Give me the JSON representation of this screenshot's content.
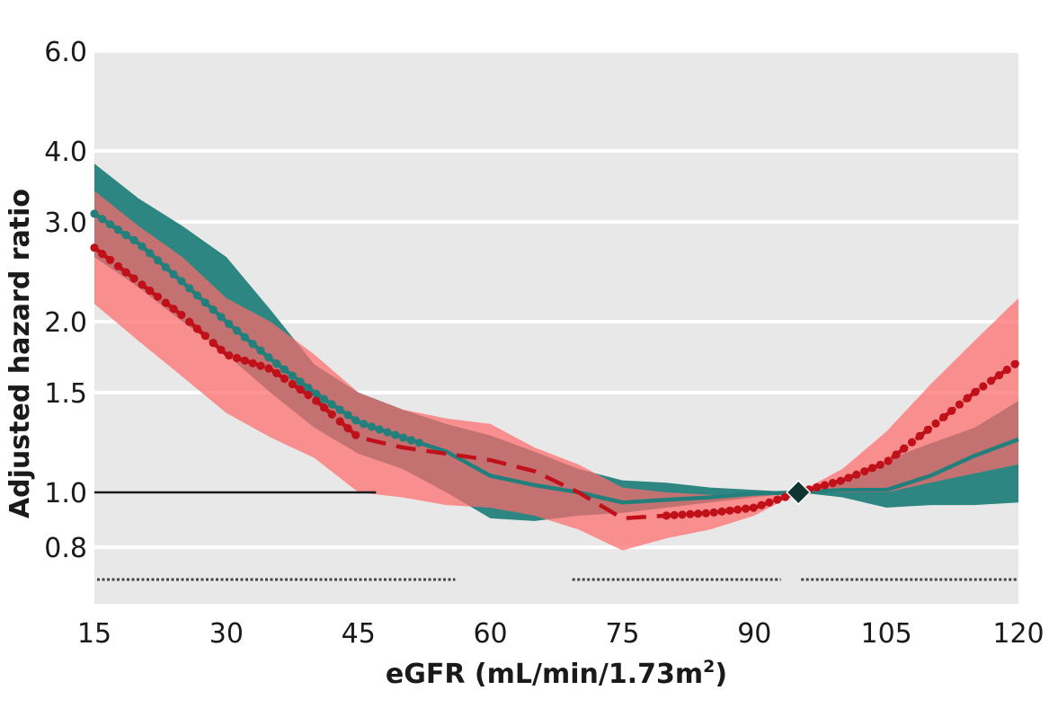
{
  "chart_data": {
    "type": "line",
    "title": "",
    "xlabel": "eGFR (mL/min/1.73m",
    "xlabel_superscript": "2",
    "xlabel_suffix": ")",
    "ylabel": "Adjusted hazard ratio",
    "y_scale": "log",
    "xlim": [
      15,
      120
    ],
    "ylim": [
      0.7,
      6.0
    ],
    "x_ticks": [
      15,
      30,
      45,
      60,
      75,
      90,
      105,
      120
    ],
    "x_tick_labels": [
      "15",
      "30",
      "45",
      "60",
      "75",
      "90",
      "105",
      "120"
    ],
    "y_ticks": [
      0.8,
      1.0,
      1.5,
      2.0,
      3.0,
      4.0,
      6.0
    ],
    "y_tick_labels": [
      "0.8",
      "1.0",
      "1.5",
      "2.0",
      "3.0",
      "4.0",
      "6.0"
    ],
    "reference_line": 1.0,
    "reference_point": {
      "x": 95,
      "y": 1.0
    },
    "colors": {
      "background": "#e8e8e8",
      "grid": "#ffffff",
      "teal_line": "#237f7b",
      "teal_band": "#2e8682",
      "red_line": "#c0111b",
      "red_band": "#ff6b6b",
      "reference": "#1a1a1a",
      "marker": "#0f3532",
      "sig_marks": "#444444"
    },
    "significance_ranges": [
      [
        15,
        56
      ],
      [
        69,
        93
      ],
      [
        95,
        120
      ]
    ],
    "series": [
      {
        "name": "teal",
        "x": [
          15,
          20,
          25,
          30,
          35,
          40,
          45,
          50,
          55,
          60,
          65,
          70,
          75,
          80,
          85,
          90,
          95,
          100,
          105,
          110,
          115,
          120
        ],
        "values": [
          3.1,
          2.75,
          2.35,
          2.0,
          1.72,
          1.5,
          1.33,
          1.25,
          1.18,
          1.07,
          1.03,
          1.0,
          0.96,
          0.97,
          0.98,
          0.995,
          1.0,
          1.01,
          1.01,
          1.07,
          1.16,
          1.24
        ],
        "lower": [
          2.6,
          2.3,
          2.0,
          1.75,
          1.5,
          1.3,
          1.17,
          1.1,
          1.0,
          0.9,
          0.89,
          0.91,
          0.92,
          0.94,
          0.96,
          0.98,
          1.0,
          0.98,
          0.94,
          0.95,
          0.95,
          0.96
        ],
        "upper": [
          3.8,
          3.3,
          2.95,
          2.6,
          2.1,
          1.68,
          1.5,
          1.4,
          1.32,
          1.26,
          1.18,
          1.1,
          1.05,
          1.04,
          1.02,
          1.01,
          1.0,
          1.05,
          1.14,
          1.22,
          1.3,
          1.45
        ],
        "dotted_until_x": 52
      },
      {
        "name": "red",
        "x": [
          15,
          20,
          25,
          30,
          35,
          40,
          45,
          50,
          55,
          60,
          65,
          70,
          75,
          80,
          85,
          90,
          95,
          100,
          105,
          110,
          115,
          120
        ],
        "values": [
          2.7,
          2.35,
          2.05,
          1.75,
          1.65,
          1.46,
          1.25,
          1.2,
          1.17,
          1.14,
          1.09,
          1.0,
          0.9,
          0.91,
          0.92,
          0.94,
          1.0,
          1.05,
          1.13,
          1.3,
          1.5,
          1.7
        ],
        "lower": [
          2.15,
          1.85,
          1.6,
          1.38,
          1.25,
          1.15,
          1.0,
          0.98,
          0.95,
          0.94,
          0.91,
          0.86,
          0.79,
          0.83,
          0.86,
          0.91,
          1.0,
          1.0,
          1.0,
          1.04,
          1.08,
          1.12
        ],
        "upper": [
          3.4,
          2.95,
          2.6,
          2.2,
          2.0,
          1.75,
          1.5,
          1.4,
          1.35,
          1.32,
          1.2,
          1.12,
          1.02,
          1.0,
          0.99,
          0.99,
          1.0,
          1.1,
          1.28,
          1.55,
          1.85,
          2.2
        ],
        "dotted_until_x": 45,
        "dotted_from_x": 80
      }
    ]
  }
}
